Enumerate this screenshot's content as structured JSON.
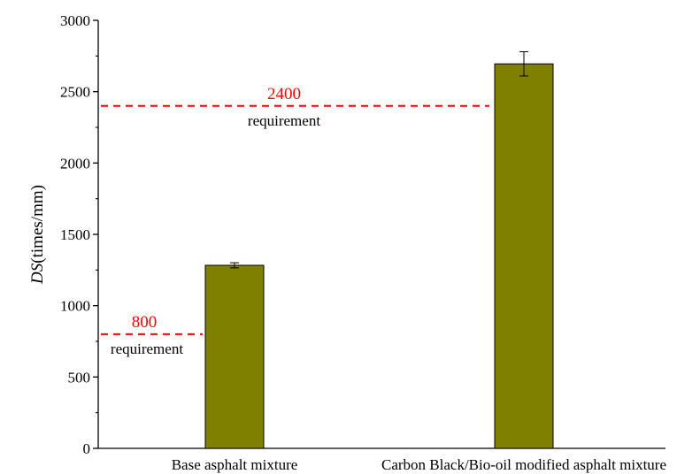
{
  "chart_data": {
    "type": "bar",
    "categories": [
      "Base asphalt mixture",
      "Carbon Black/Bio-oil modified asphalt mixture"
    ],
    "values": [
      1283,
      2695
    ],
    "errors": [
      18,
      85
    ],
    "ylabel_italic": "DS",
    "ylabel_rest": "(times/mm)",
    "ylim": [
      0,
      3000
    ],
    "yticks": [
      "0",
      "500",
      "1000",
      "1500",
      "2000",
      "2500",
      "3000"
    ],
    "grid": false,
    "bar_color": "#808000",
    "reference_lines": [
      {
        "value": 2400,
        "label": "2400",
        "note": "requirement",
        "color": "#ff0000"
      },
      {
        "value": 800,
        "label": "800",
        "note": "requirement",
        "color": "#ff0000"
      }
    ]
  }
}
